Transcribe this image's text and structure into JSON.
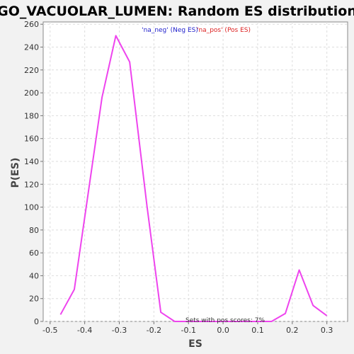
{
  "chart_data": {
    "type": "line",
    "title": "GO_VACUOLAR_LUMEN: Random ES distribution",
    "xlabel": "ES",
    "ylabel": "P(ES)",
    "xlim": [
      -0.52,
      0.36
    ],
    "ylim": [
      0,
      262
    ],
    "xticks": [
      "-0.5",
      "-0.4",
      "-0.3",
      "-0.2",
      "-0.1",
      "0.0",
      "0.1",
      "0.2",
      "0.3"
    ],
    "xtick_values": [
      -0.5,
      -0.4,
      -0.3,
      -0.2,
      -0.1,
      0.0,
      0.1,
      0.2,
      0.3
    ],
    "yticks": [
      "0",
      "20",
      "40",
      "60",
      "80",
      "100",
      "120",
      "140",
      "160",
      "180",
      "200",
      "220",
      "240",
      "260"
    ],
    "ytick_values": [
      0,
      20,
      40,
      60,
      80,
      100,
      120,
      140,
      160,
      180,
      200,
      220,
      240,
      260
    ],
    "grid": true,
    "legend": {
      "placement": "top-center",
      "entries": [
        {
          "label": "'na_neg' (Neg ES)",
          "color": "#2222cc"
        },
        {
          "label": "'na_pos' (Pos ES)",
          "color": "#dd2222"
        }
      ]
    },
    "annotation": "Sets with pos scores: 7%",
    "series": [
      {
        "color": "#ee44ee",
        "x": [
          -0.47,
          -0.43,
          -0.39,
          -0.35,
          -0.31,
          -0.27,
          -0.22,
          -0.18,
          -0.14,
          -0.1,
          -0.06,
          -0.02,
          0.02,
          0.06,
          0.1,
          0.14,
          0.18,
          0.22,
          0.26,
          0.3
        ],
        "y": [
          6,
          28,
          112,
          196,
          250,
          227,
          101,
          8,
          0,
          0,
          0,
          0,
          0,
          0,
          0,
          0,
          7,
          45,
          14,
          5
        ]
      }
    ]
  }
}
